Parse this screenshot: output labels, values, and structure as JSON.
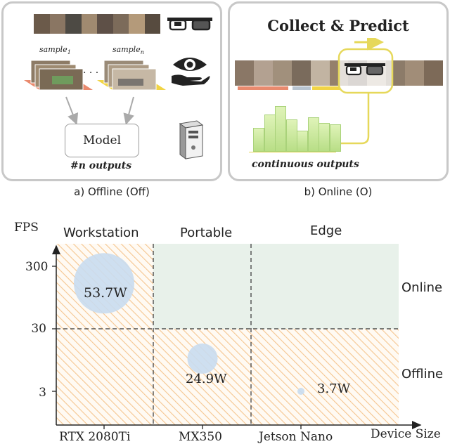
{
  "offline_panel": {
    "sample_first": "sample",
    "sample_first_sub": "1",
    "sample_last": "sample",
    "sample_last_sub": "n",
    "ellipsis": "· · ·",
    "model_label": "Model",
    "outputs_label": "#n outputs",
    "caption": "a) Offline (Off)",
    "icons": [
      "smart-glasses-icon",
      "eye-in-hand-icon",
      "workstation-tower-icon"
    ]
  },
  "online_panel": {
    "title": "Collect & Predict",
    "outputs_label": "continuous outputs",
    "caption": "b) Online (O)",
    "bar_levels": [
      0.45,
      0.7,
      0.86,
      0.6,
      0.39,
      0.64,
      0.54,
      0.51
    ],
    "icons": [
      "smart-glasses-icon"
    ]
  },
  "chart_data": {
    "type": "scatter",
    "title": "",
    "xlabel": "Device Size",
    "ylabel": "FPS",
    "ylog": true,
    "yticks": [
      3,
      30,
      300
    ],
    "x_categories": [
      "RTX 2080Ti",
      "MX350",
      "Jetson Nano"
    ],
    "column_labels": [
      "Workstation",
      "Portable",
      "Edge"
    ],
    "row_labels": [
      "Online",
      "Offline"
    ],
    "points": [
      {
        "x": "RTX 2080Ti",
        "y": 160,
        "power_w": 53.7,
        "label": "53.7W"
      },
      {
        "x": "MX350",
        "y": 10,
        "power_w": 24.9,
        "label": "24.9W"
      },
      {
        "x": "Jetson Nano",
        "y": 3,
        "power_w": 3.7,
        "label": "3.7W"
      }
    ],
    "colors": {
      "online_region": "#e8f1ea",
      "offline_hatch": "#f5c690",
      "bubble": "#c9dcf0"
    }
  }
}
